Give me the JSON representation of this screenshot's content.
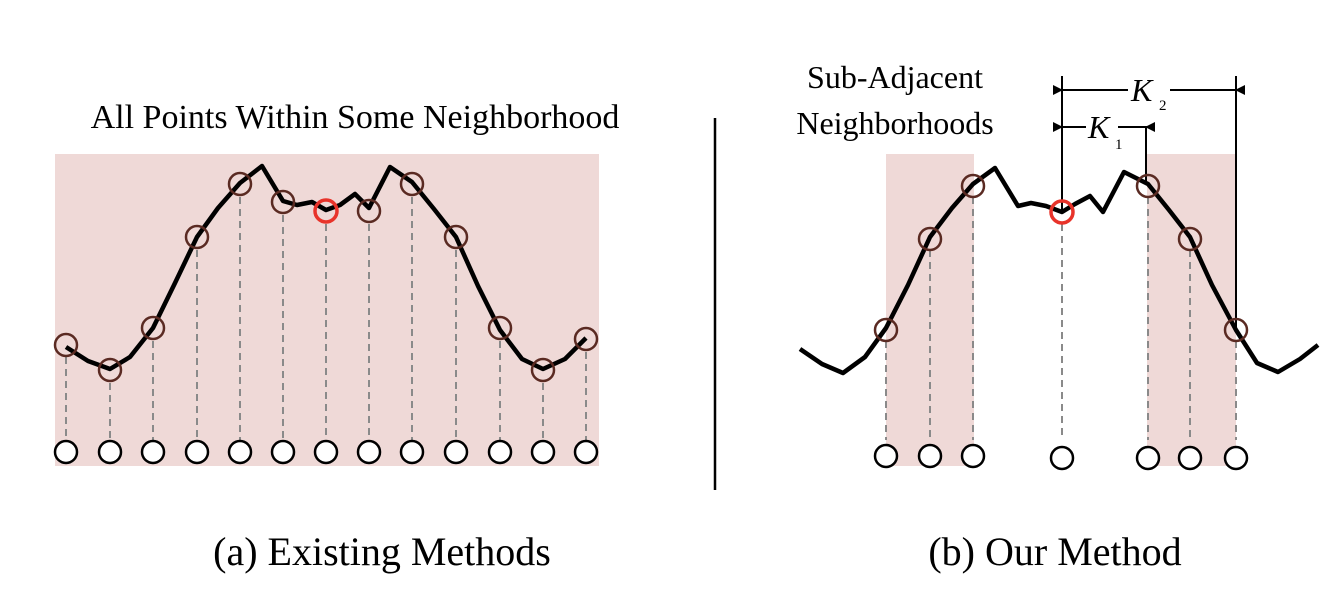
{
  "panel_a": {
    "title": "All Points Within Some Neighborhood",
    "caption": "(a) Existing Methods"
  },
  "panel_b": {
    "title_line1": "Sub-Adjacent",
    "title_line2": "Neighborhoods",
    "caption": "(b) Our Method",
    "k1_label": "K",
    "k1_sub": "1",
    "k2_label": "K",
    "k2_sub": "2"
  },
  "colors": {
    "shade": "#efd9d7",
    "curve": "#000000",
    "marker": "#5a2a22",
    "focus": "#e8332a",
    "dashed": "#8a8a8a"
  }
}
